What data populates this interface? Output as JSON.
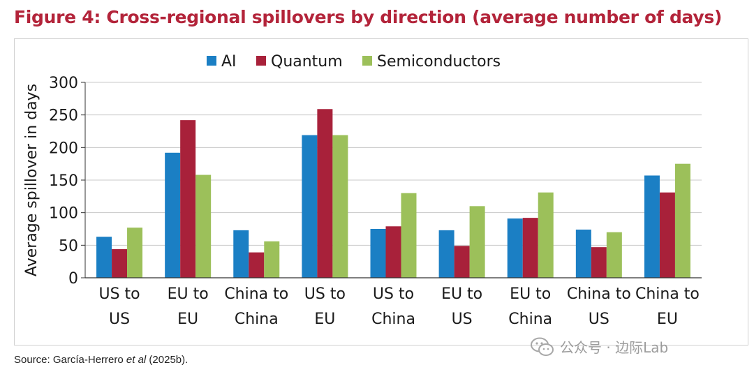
{
  "figure": {
    "title": "Figure 4: Cross-regional spillovers by direction (average number of days)",
    "source_prefix": "Source: García-Herrero ",
    "source_italic": "et al",
    "source_suffix": " (2025b)."
  },
  "watermark": {
    "text": "公众号 · 边际Lab",
    "icon": "wechat-icon"
  },
  "colors": {
    "AI": "#1b7fc4",
    "Quantum": "#a8213a",
    "Semiconductors": "#9cc05a",
    "title": "#b3243a",
    "grid": "#c8c8c8"
  },
  "chart_data": {
    "type": "bar",
    "title": "Figure 4: Cross-regional spillovers by direction (average number of days)",
    "xlabel": "",
    "ylabel": "Average spillover in days",
    "ylim": [
      0,
      300
    ],
    "yticks": [
      0,
      50,
      100,
      150,
      200,
      250,
      300
    ],
    "grid": true,
    "legend_position": "top",
    "categories": [
      [
        "US to",
        "US"
      ],
      [
        "EU to",
        "EU"
      ],
      [
        "China to",
        "China"
      ],
      [
        "US to",
        "EU"
      ],
      [
        "US to",
        "China"
      ],
      [
        "EU to",
        "US"
      ],
      [
        "EU to",
        "China"
      ],
      [
        "China to",
        "US"
      ],
      [
        "China to",
        "EU"
      ]
    ],
    "series": [
      {
        "name": "AI",
        "values": [
          63,
          192,
          73,
          219,
          75,
          73,
          91,
          74,
          157
        ]
      },
      {
        "name": "Quantum",
        "values": [
          44,
          242,
          39,
          259,
          79,
          49,
          92,
          47,
          131
        ]
      },
      {
        "name": "Semiconductors",
        "values": [
          77,
          158,
          56,
          219,
          130,
          110,
          131,
          70,
          175
        ]
      }
    ]
  }
}
